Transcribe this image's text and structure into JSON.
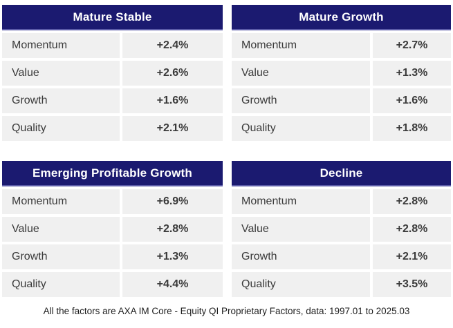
{
  "chart_data": [
    {
      "type": "table",
      "title": "Mature Stable",
      "rows": [
        [
          "Momentum",
          "+2.4%"
        ],
        [
          "Value",
          "+2.6%"
        ],
        [
          "Growth",
          "+1.6%"
        ],
        [
          "Quality",
          "+2.1%"
        ]
      ]
    },
    {
      "type": "table",
      "title": "Mature Growth",
      "rows": [
        [
          "Momentum",
          "+2.7%"
        ],
        [
          "Value",
          "+1.3%"
        ],
        [
          "Growth",
          "+1.6%"
        ],
        [
          "Quality",
          "+1.8%"
        ]
      ]
    },
    {
      "type": "table",
      "title": "Emerging Profitable Growth",
      "rows": [
        [
          "Momentum",
          "+6.9%"
        ],
        [
          "Value",
          "+2.8%"
        ],
        [
          "Growth",
          "+1.3%"
        ],
        [
          "Quality",
          "+4.4%"
        ]
      ]
    },
    {
      "type": "table",
      "title": "Decline",
      "rows": [
        [
          "Momentum",
          "+2.8%"
        ],
        [
          "Value",
          "+2.8%"
        ],
        [
          "Growth",
          "+2.1%"
        ],
        [
          "Quality",
          "+3.5%"
        ]
      ]
    }
  ],
  "footer": {
    "note": "All the factors are AXA IM Core - Equity QI Proprietary Factors, data: 1997.01 to 2025.03"
  },
  "colors": {
    "header_bg": "#1b1a70",
    "header_accent": "#5c5ca8",
    "header_text": "#ffffff",
    "row_bg": "#f0f0f0",
    "text": "#3a3a3a"
  }
}
